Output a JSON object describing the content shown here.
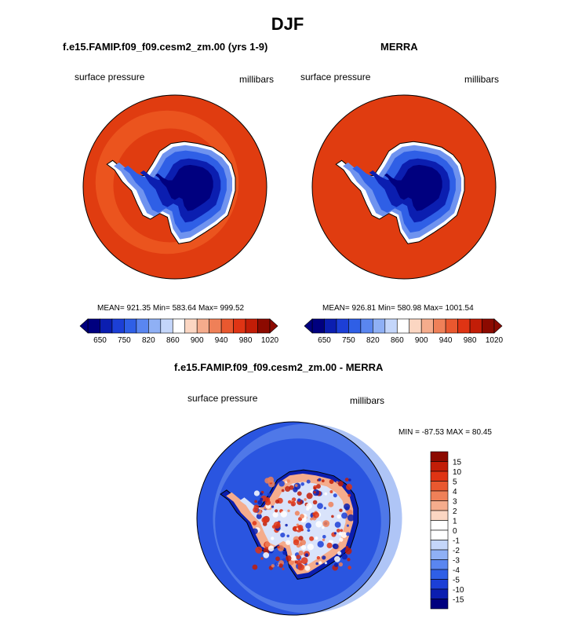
{
  "figure": {
    "title": "DJF",
    "levels_full": [
      "650",
      "750",
      "820",
      "860",
      "900",
      "940",
      "980",
      "1020"
    ],
    "colors_full": [
      "#00007f",
      "#0b1eb0",
      "#1c3fd6",
      "#2f5fe6",
      "#5a86f0",
      "#8fb0f5",
      "#c4d6fa",
      "#ffffff",
      "#fbd6c2",
      "#f5ac8c",
      "#ef8058",
      "#e9582f",
      "#df3414",
      "#c21d07",
      "#8c0a00"
    ],
    "levels_diff": [
      "15",
      "10",
      "5",
      "4",
      "3",
      "2",
      "1",
      "0",
      "-1",
      "-2",
      "-3",
      "-4",
      "-5",
      "-10",
      "-15"
    ],
    "colors_diff": [
      "#8c0a00",
      "#c21d07",
      "#df3414",
      "#e9582f",
      "#ef8058",
      "#f5ac8c",
      "#fbd6c2",
      "#ffffff",
      "#ffffff",
      "#c4d6fa",
      "#8fb0f5",
      "#5a86f0",
      "#2f5fe6",
      "#1c3fd6",
      "#0b1eb0",
      "#00007f"
    ]
  },
  "panels": [
    {
      "title": "f.e15.FAMIP.f09_f09.cesm2_zm.00 (yrs 1-9)",
      "left_label": "surface pressure",
      "right_label": "millibars",
      "stats": "MEAN= 921.35  Min= 583.64  Max= 999.52",
      "ocean_color": "#e03c10",
      "inner_ring_color": "#ee5a22"
    },
    {
      "title": "MERRA",
      "left_label": "surface pressure",
      "right_label": "millibars",
      "stats": "MEAN= 926.81  Min= 580.98  Max= 1001.54",
      "ocean_color": "#e03c10"
    },
    {
      "title": "f.e15.FAMIP.f09_f09.cesm2_zm.00 - MERRA",
      "left_label": "surface pressure",
      "right_label": "millibars",
      "stats": "MIN = -87.53 MAX =  80.45",
      "ocean_color": "#2a55e0",
      "outer_ring_color": "#6d95ef"
    }
  ],
  "chart_data": [
    {
      "type": "heatmap",
      "title": "f.e15.FAMIP.f09_f09.cesm2_zm.00 (yrs 1-9)",
      "variable": "surface pressure",
      "units": "millibars",
      "season": "DJF",
      "mean": 921.35,
      "min": 583.64,
      "max": 999.52,
      "levels": [
        650,
        750,
        820,
        860,
        900,
        940,
        980,
        1020
      ],
      "colorbar_orientation": "horizontal"
    },
    {
      "type": "heatmap",
      "title": "MERRA",
      "variable": "surface pressure",
      "units": "millibars",
      "season": "DJF",
      "mean": 926.81,
      "min": 580.98,
      "max": 1001.54,
      "levels": [
        650,
        750,
        820,
        860,
        900,
        940,
        980,
        1020
      ],
      "colorbar_orientation": "horizontal"
    },
    {
      "type": "heatmap",
      "title": "f.e15.FAMIP.f09_f09.cesm2_zm.00 - MERRA",
      "variable": "surface pressure",
      "units": "millibars",
      "season": "DJF",
      "min": -87.53,
      "max": 80.45,
      "levels": [
        15,
        10,
        5,
        4,
        3,
        2,
        1,
        0,
        -1,
        -2,
        -3,
        -4,
        -5,
        -10,
        -15
      ],
      "colorbar_orientation": "vertical"
    }
  ]
}
